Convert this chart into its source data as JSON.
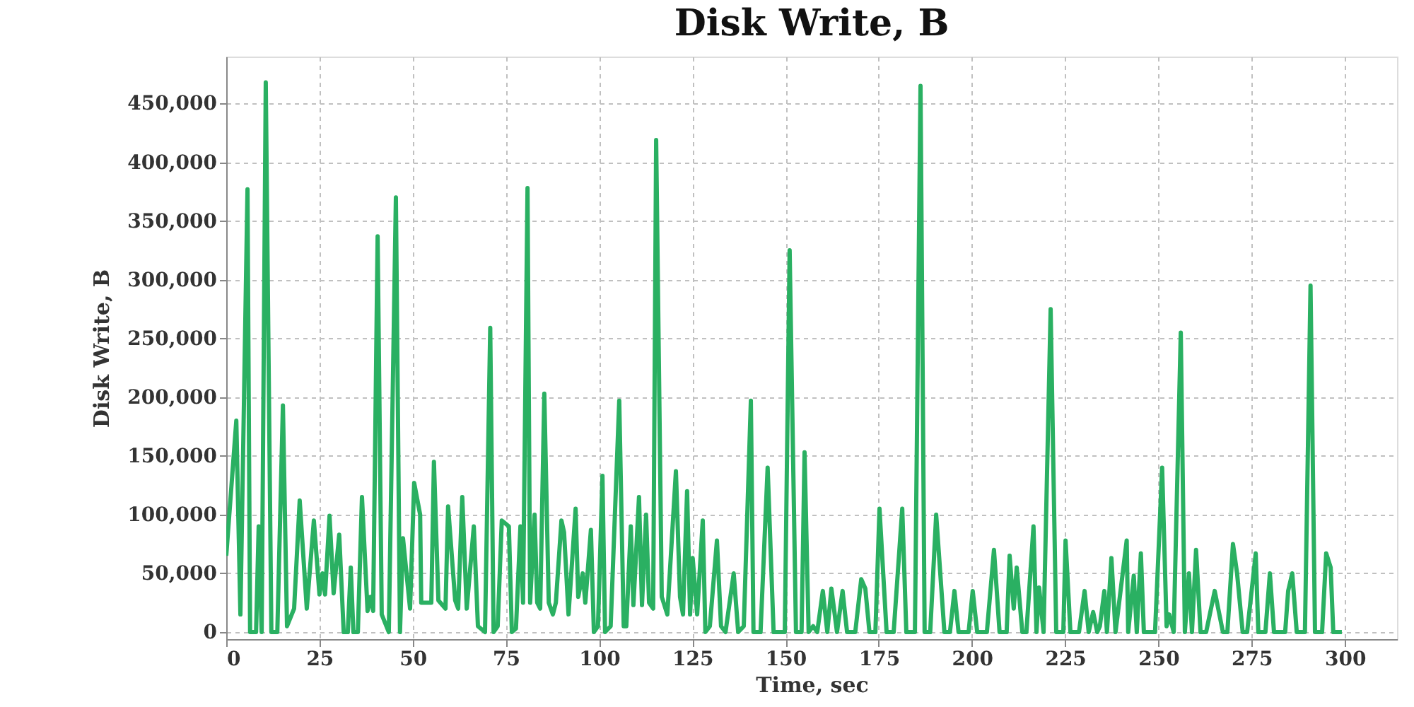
{
  "chart_data": {
    "type": "line",
    "title": "Disk Write, B",
    "xlabel": "Time, sec",
    "ylabel": "Disk Write, B",
    "xlim": [
      0,
      314
    ],
    "xticks": [
      0,
      25,
      50,
      75,
      100,
      125,
      150,
      175,
      200,
      225,
      250,
      275,
      300
    ],
    "ylim": [
      -6000,
      490000
    ],
    "yticks": [
      {
        "value": 0,
        "label": "0"
      },
      {
        "value": 50000,
        "label": "50,000"
      },
      {
        "value": 100000,
        "label": "100,000"
      },
      {
        "value": 150000,
        "label": "150,000"
      },
      {
        "value": 200000,
        "label": "200,000"
      },
      {
        "value": 250000,
        "label": "250,000"
      },
      {
        "value": 300000,
        "label": "300,000"
      },
      {
        "value": 350000,
        "label": "350,000"
      },
      {
        "value": 400000,
        "label": "400,000"
      },
      {
        "value": 450000,
        "label": "450,000"
      }
    ],
    "grid": true,
    "marker": "none",
    "line_style": "solid",
    "series": [
      {
        "color": "#2ab062",
        "x": [
          0.0,
          2.7,
          3.8,
          5.7,
          6.4,
          8.0,
          8.7,
          9.5,
          10.6,
          12.1,
          13.7,
          15.2,
          16.3,
          18.2,
          19.7,
          21.6,
          23.5,
          25.0,
          25.8,
          26.5,
          27.7,
          28.8,
          30.3,
          31.5,
          32.6,
          33.4,
          34.1,
          35.3,
          36.4,
          37.9,
          38.7,
          39.4,
          40.6,
          41.7,
          43.6,
          45.5,
          46.6,
          47.4,
          49.3,
          50.4,
          52.0,
          52.3,
          55.0,
          55.7,
          56.9,
          58.8,
          59.5,
          61.4,
          62.2,
          63.3,
          64.5,
          66.4,
          67.5,
          69.4,
          70.8,
          71.7,
          72.8,
          73.9,
          75.8,
          76.6,
          77.7,
          78.9,
          79.6,
          80.8,
          81.5,
          82.7,
          83.4,
          84.2,
          85.3,
          86.5,
          87.6,
          88.4,
          89.9,
          90.6,
          91.8,
          93.7,
          94.4,
          95.6,
          96.3,
          97.8,
          98.6,
          99.7,
          100.9,
          101.6,
          103.1,
          105.4,
          106.6,
          107.3,
          108.5,
          109.2,
          110.7,
          111.5,
          112.6,
          113.4,
          114.5,
          115.3,
          116.8,
          118.3,
          120.6,
          121.7,
          122.5,
          123.6,
          124.4,
          125.1,
          126.3,
          127.8,
          128.5,
          129.7,
          131.6,
          132.7,
          133.9,
          136.1,
          137.3,
          138.8,
          140.7,
          141.4,
          143.3,
          145.2,
          146.8,
          149.8,
          151.1,
          152.8,
          154.3,
          155.1,
          156.2,
          157.4,
          158.5,
          160.0,
          161.2,
          162.3,
          163.8,
          165.3,
          166.5,
          168.7,
          170.3,
          171.4,
          172.5,
          174.1,
          175.2,
          177.1,
          179.0,
          181.3,
          182.4,
          184.7,
          186.2,
          187.3,
          188.8,
          190.4,
          192.6,
          194.1,
          195.3,
          196.4,
          199.1,
          200.2,
          201.4,
          204.0,
          205.9,
          207.4,
          209.3,
          210.1,
          211.2,
          212.0,
          213.5,
          214.6,
          216.5,
          217.3,
          218.0,
          219.2,
          221.1,
          222.6,
          224.5,
          225.1,
          226.4,
          228.7,
          230.2,
          231.3,
          232.5,
          233.6,
          234.3,
          235.5,
          236.2,
          237.4,
          238.5,
          241.5,
          241.9,
          243.4,
          244.2,
          245.3,
          246.1,
          249.1,
          251.0,
          252.2,
          252.9,
          254.1,
          256.0,
          257.1,
          258.2,
          259.0,
          260.1,
          261.3,
          262.8,
          265.1,
          267.3,
          268.5,
          270.0,
          271.1,
          272.6,
          273.8,
          276.1,
          276.8,
          278.7,
          279.9,
          281.0,
          284.0,
          284.8,
          285.9,
          287.1,
          289.3,
          290.8,
          292.0,
          293.9,
          295.0,
          296.2,
          296.9,
          299.2
        ],
        "values": [
          65000,
          180000,
          15000,
          377000,
          0,
          0,
          90000,
          0,
          468000,
          0,
          0,
          193000,
          5000,
          20000,
          112000,
          20000,
          95000,
          32000,
          50000,
          32000,
          99000,
          33000,
          83000,
          0,
          0,
          55000,
          0,
          0,
          115000,
          18000,
          30000,
          18000,
          337000,
          15000,
          0,
          370000,
          0,
          80000,
          20000,
          127000,
          100000,
          25000,
          25000,
          145000,
          27000,
          20000,
          107000,
          27000,
          20000,
          115000,
          20000,
          90000,
          5000,
          0,
          259000,
          0,
          5000,
          95000,
          90000,
          0,
          3000,
          90000,
          25000,
          378000,
          25000,
          100000,
          25000,
          20000,
          203000,
          25000,
          15000,
          25000,
          95000,
          85000,
          15000,
          105000,
          30000,
          50000,
          25000,
          87000,
          0,
          5000,
          133000,
          0,
          5000,
          197000,
          5000,
          5000,
          90000,
          23000,
          115000,
          23000,
          100000,
          25000,
          20000,
          419000,
          30000,
          15000,
          137000,
          30000,
          15000,
          120000,
          15000,
          63000,
          15000,
          95000,
          0,
          5000,
          78000,
          5000,
          0,
          50000,
          0,
          5000,
          197000,
          0,
          0,
          140000,
          0,
          0,
          325000,
          0,
          0,
          153000,
          0,
          5000,
          0,
          35000,
          0,
          37000,
          0,
          35000,
          0,
          0,
          45000,
          37000,
          0,
          0,
          105000,
          0,
          0,
          105000,
          0,
          0,
          465000,
          0,
          0,
          100000,
          0,
          0,
          35000,
          0,
          0,
          35000,
          0,
          0,
          70000,
          0,
          0,
          65000,
          20000,
          55000,
          0,
          0,
          90000,
          0,
          38000,
          0,
          275000,
          0,
          0,
          78000,
          0,
          0,
          35000,
          0,
          17000,
          0,
          5000,
          35000,
          0,
          63000,
          0,
          78000,
          0,
          48000,
          0,
          67000,
          0,
          0,
          140000,
          5000,
          15000,
          0,
          255000,
          0,
          50000,
          0,
          70000,
          0,
          0,
          35000,
          0,
          0,
          75000,
          50000,
          0,
          0,
          67000,
          0,
          0,
          50000,
          0,
          0,
          35000,
          50000,
          0,
          0,
          295000,
          0,
          0,
          67000,
          55000,
          0,
          0
        ]
      }
    ]
  }
}
